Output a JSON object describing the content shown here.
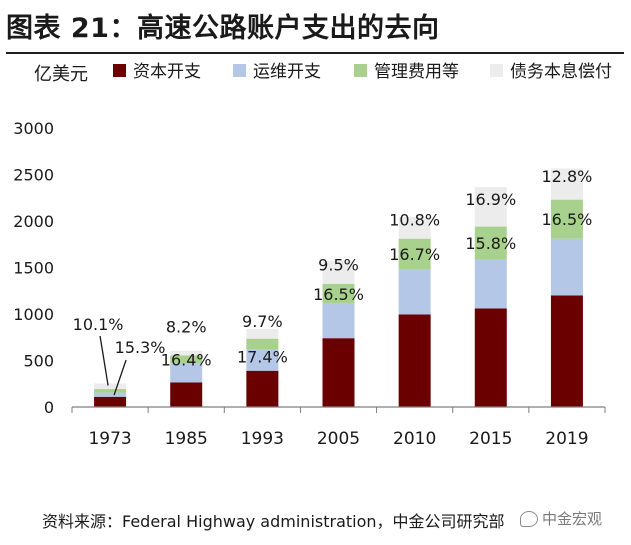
{
  "title": "图表 21：高速公路账户支出的去向",
  "unit_label": "亿美元",
  "source": "资料来源：Federal Highway administration，中金公司研究部",
  "watermark": "中金宏观",
  "chart_data": {
    "type": "bar",
    "stacked": true,
    "categories": [
      "1973",
      "1985",
      "1993",
      "2005",
      "2010",
      "2015",
      "2019"
    ],
    "ylim": [
      0,
      3000
    ],
    "yticks": [
      0,
      500,
      1000,
      1500,
      2000,
      2500,
      3000
    ],
    "legend_position": "top",
    "grid": false,
    "series": [
      {
        "name": "资本开支",
        "color": "#6b0000",
        "values": [
          110,
          265,
          390,
          740,
          995,
          1060,
          1200
        ]
      },
      {
        "name": "运维开支",
        "color": "#b4c7e7",
        "values": [
          45,
          200,
          225,
          370,
          480,
          525,
          610
        ]
      },
      {
        "name": "管理费用等",
        "color": "#a9d18e",
        "values": [
          38,
          90,
          120,
          215,
          335,
          355,
          420
        ]
      },
      {
        "name": "债务本息偿付",
        "color": "#ececec",
        "values": [
          60,
          50,
          105,
          245,
          235,
          425,
          335
        ]
      }
    ],
    "annotations": [
      {
        "category": "1973",
        "series": "管理费用等",
        "text": "15.3%"
      },
      {
        "category": "1973",
        "series": "债务本息偿付",
        "text": "10.1%"
      },
      {
        "category": "1985",
        "series": "管理费用等",
        "text": "16.4%"
      },
      {
        "category": "1985",
        "series": "债务本息偿付",
        "text": "8.2%"
      },
      {
        "category": "1993",
        "series": "管理费用等",
        "text": "17.4%"
      },
      {
        "category": "1993",
        "series": "债务本息偿付",
        "text": "9.7%"
      },
      {
        "category": "2005",
        "series": "管理费用等",
        "text": "16.5%"
      },
      {
        "category": "2005",
        "series": "债务本息偿付",
        "text": "9.5%"
      },
      {
        "category": "2010",
        "series": "管理费用等",
        "text": "16.7%"
      },
      {
        "category": "2010",
        "series": "债务本息偿付",
        "text": "10.8%"
      },
      {
        "category": "2015",
        "series": "管理费用等",
        "text": "15.8%"
      },
      {
        "category": "2015",
        "series": "债务本息偿付",
        "text": "16.9%"
      },
      {
        "category": "2019",
        "series": "管理费用等",
        "text": "16.5%"
      },
      {
        "category": "2019",
        "series": "债务本息偿付",
        "text": "12.8%"
      }
    ]
  }
}
